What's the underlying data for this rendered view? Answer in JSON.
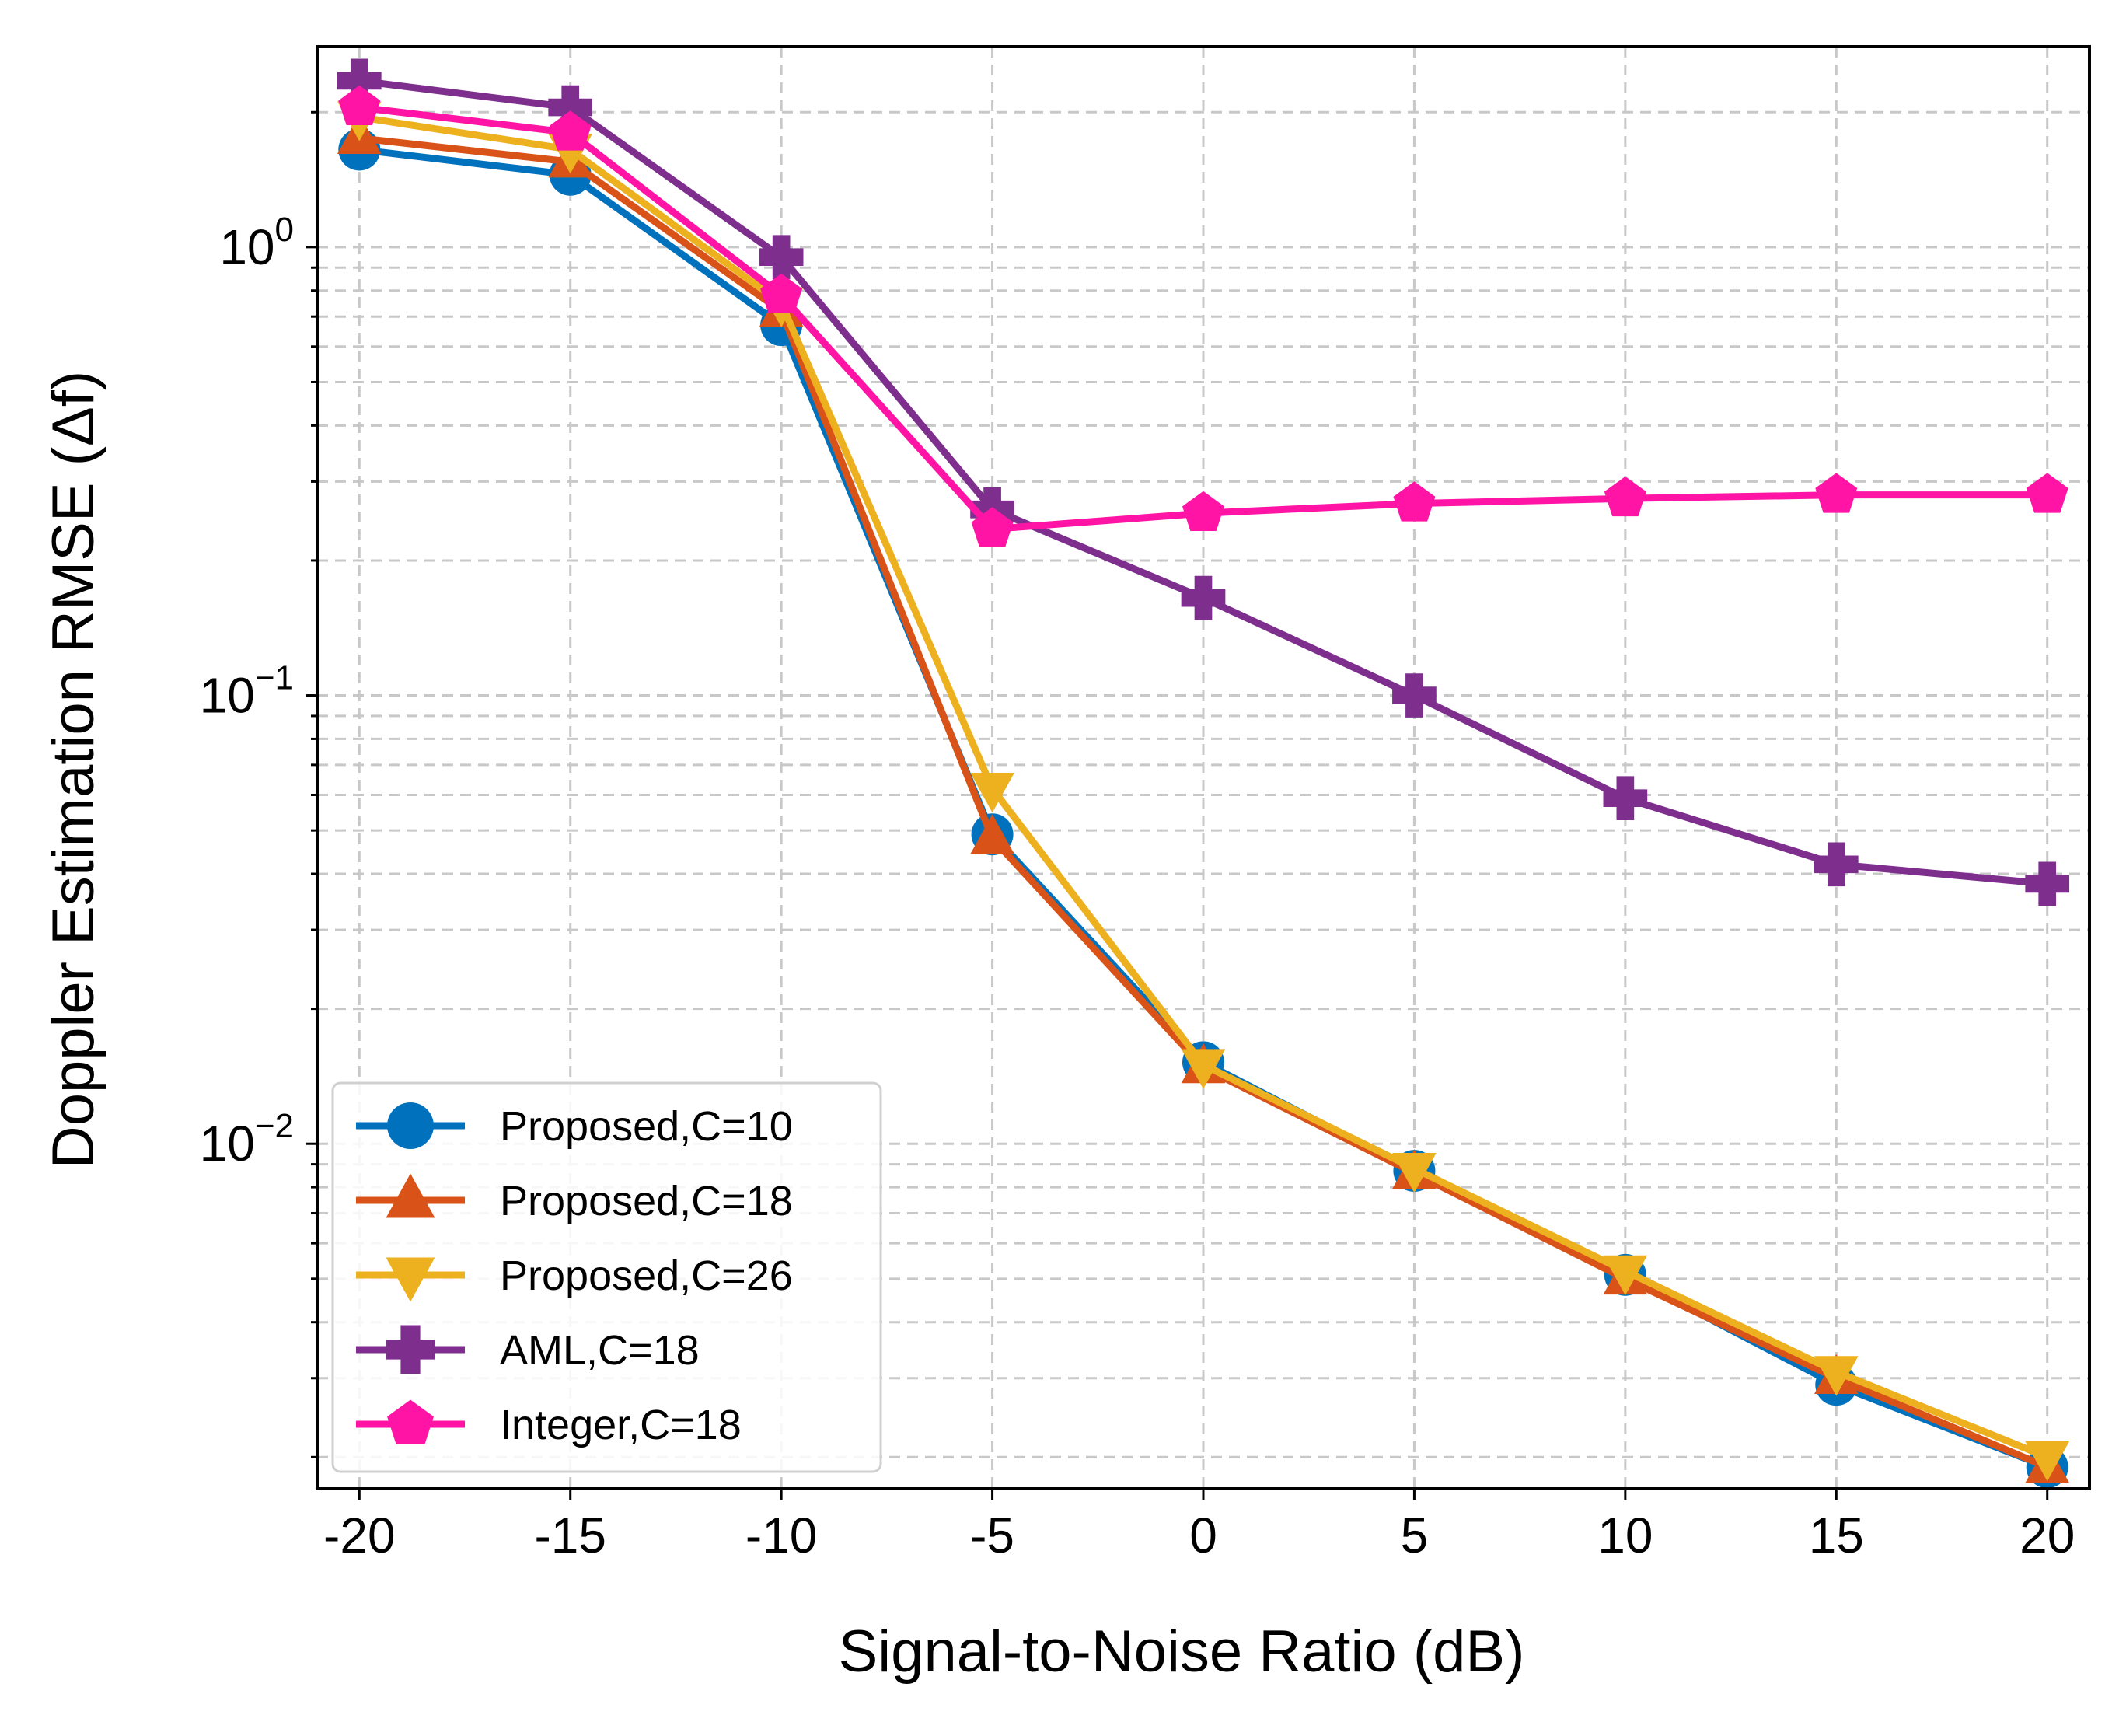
{
  "chart_data": {
    "type": "line",
    "title": "",
    "xlabel": "Signal-to-Noise Ratio (dB)",
    "ylabel": "Doppler Estimation RMSE (Δf)",
    "yscale": "log",
    "xlim": [
      -21,
      21
    ],
    "ylim": [
      0.0017,
      2.8
    ],
    "grid": true,
    "legend_position": "lower-left",
    "x": [
      -20,
      -15,
      -10,
      -5,
      0,
      5,
      10,
      15,
      20
    ],
    "x_tick_labels": [
      "-20",
      "-15",
      "-10",
      "-5",
      "0",
      "5",
      "10",
      "15",
      "20"
    ],
    "y_tick_labels": [
      {
        "value": 1,
        "base": "10",
        "exp": "0"
      },
      {
        "value": 0.1,
        "base": "10",
        "exp": "−1"
      },
      {
        "value": 0.01,
        "base": "10",
        "exp": "−2"
      }
    ],
    "series": [
      {
        "name": "Proposed,C=10",
        "color": "#0072BD",
        "marker": "circle",
        "values": [
          1.65,
          1.45,
          0.67,
          0.049,
          0.0152,
          0.0087,
          0.0051,
          0.0029,
          0.0019
        ]
      },
      {
        "name": "Proposed,C=18",
        "color": "#D95319",
        "marker": "triangle-up",
        "values": [
          1.75,
          1.55,
          0.72,
          0.048,
          0.0148,
          0.0086,
          0.005,
          0.003,
          0.0019
        ]
      },
      {
        "name": "Proposed,C=26",
        "color": "#EDB120",
        "marker": "triangle-down",
        "values": [
          1.95,
          1.65,
          0.75,
          0.062,
          0.015,
          0.0088,
          0.0052,
          0.0031,
          0.002
        ]
      },
      {
        "name": "AML,C=18",
        "color": "#7E2F8E",
        "marker": "plus",
        "values": [
          2.35,
          2.05,
          0.95,
          0.26,
          0.165,
          0.1,
          0.059,
          0.042,
          0.038
        ]
      },
      {
        "name": "Integer,C=18",
        "color": "#FF14A5",
        "marker": "pentagon",
        "values": [
          2.05,
          1.8,
          0.78,
          0.235,
          0.255,
          0.268,
          0.275,
          0.28,
          0.28
        ]
      }
    ]
  }
}
